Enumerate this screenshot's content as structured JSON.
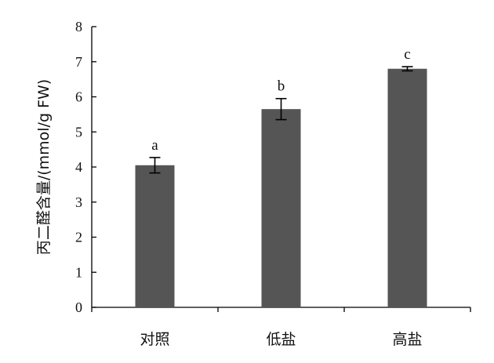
{
  "chart_data": {
    "type": "bar",
    "title": "",
    "xlabel": "",
    "ylabel": "丙二醛含量/(mmol/g FW)",
    "ylim": [
      0,
      8
    ],
    "yticks": [
      "0",
      "1",
      "2",
      "3",
      "4",
      "5",
      "6",
      "7",
      "8"
    ],
    "grid": false,
    "bar_color": "#555555",
    "categories": [
      "对照",
      "低盐",
      "高盐"
    ],
    "values": [
      4.05,
      5.65,
      6.8
    ],
    "errors": [
      0.22,
      0.3,
      0.06
    ],
    "significance": [
      "a",
      "b",
      "c"
    ]
  }
}
